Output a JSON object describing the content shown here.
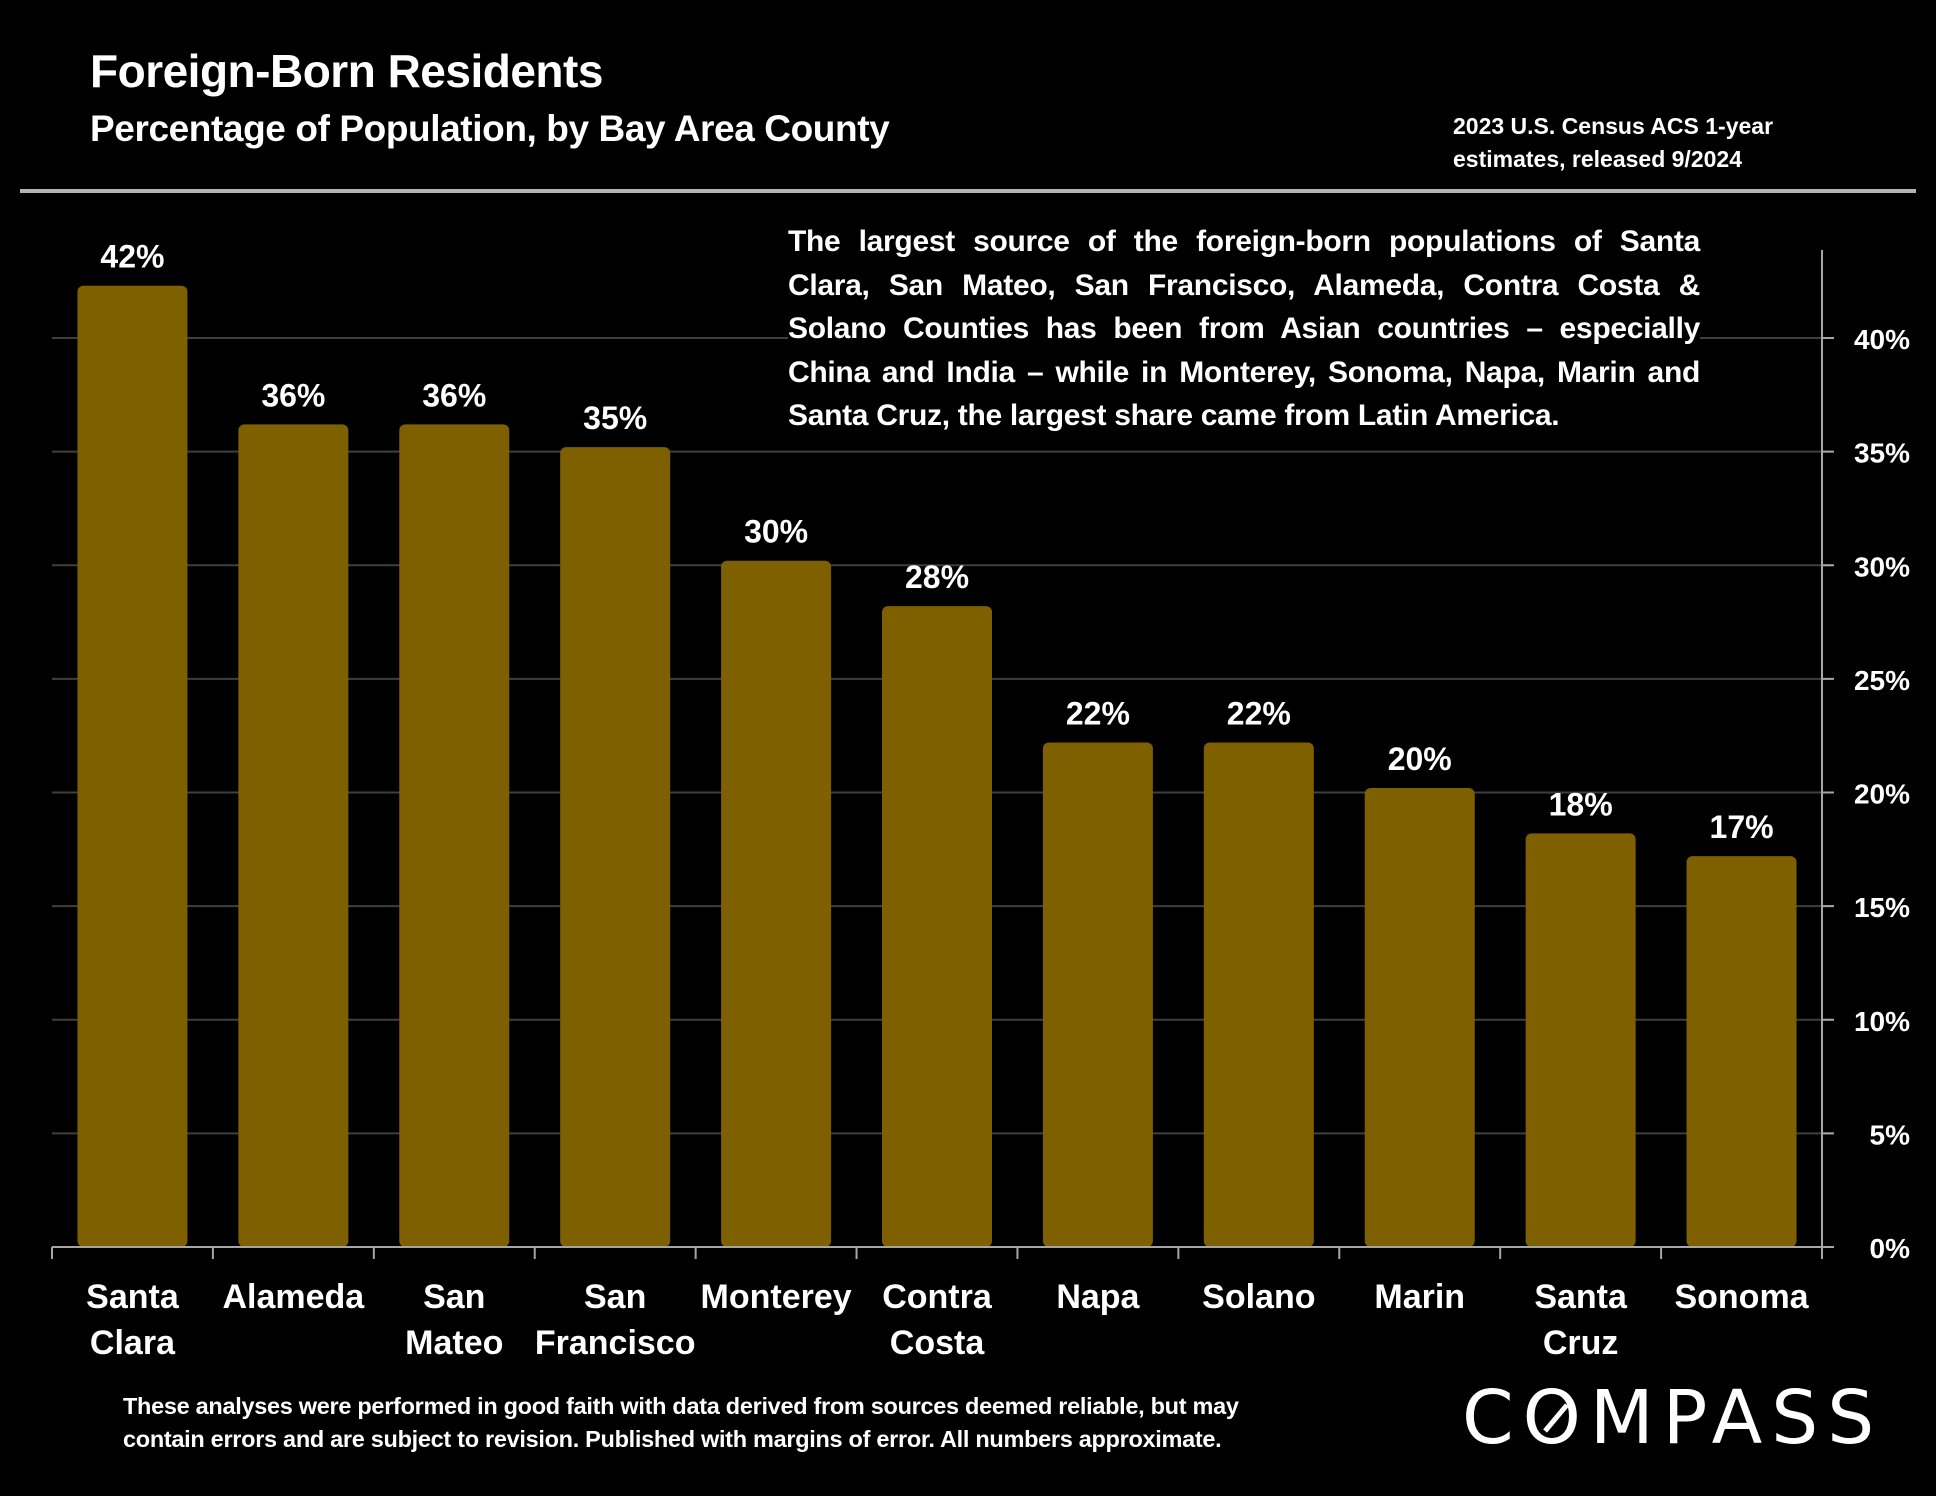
{
  "header": {
    "title": "Foreign-Born Residents",
    "subtitle": "Percentage of Population, by Bay Area County",
    "source_line1": "2023 U.S. Census ACS 1-year",
    "source_line2": "estimates, released 9/2024"
  },
  "annotation": "The largest source of the foreign-born populations of Santa Clara, San Mateo, San Francisco, Alameda, Contra Costa & Solano Counties has been from Asian countries – especially China and India – while in Monterey, Sonoma, Napa, Marin and Santa Cruz, the largest share came from Latin America.",
  "footer": {
    "disclaimer_line1": "These analyses were performed in good faith with data derived from sources deemed reliable, but may",
    "disclaimer_line2": "contain errors and are subject to revision.  Published with margins of error. All numbers approximate.",
    "logo_pre": "C",
    "logo_o": "O",
    "logo_post": "MPASS"
  },
  "colors": {
    "bar": "#7f6000",
    "background": "#000000",
    "gridline": "#3f3f3f",
    "axis": "#a6a6a6",
    "text": "#ffffff"
  },
  "chart_data": {
    "type": "bar",
    "title": "Foreign-Born Residents",
    "subtitle": "Percentage of Population, by Bay Area County",
    "xlabel": "",
    "ylabel": "",
    "categories": [
      [
        "Santa",
        "Clara"
      ],
      [
        "Alameda"
      ],
      [
        "San",
        "Mateo"
      ],
      [
        "San",
        "Francisco"
      ],
      [
        "Monterey"
      ],
      [
        "Contra",
        "Costa"
      ],
      [
        "Napa"
      ],
      [
        "Solano"
      ],
      [
        "Marin"
      ],
      [
        "Santa",
        "Cruz"
      ],
      [
        "Sonoma"
      ]
    ],
    "values": [
      42.3,
      36.2,
      36.2,
      35.2,
      30.2,
      28.2,
      22.2,
      22.2,
      20.2,
      18.2,
      17.2
    ],
    "data_labels": [
      "42%",
      "36%",
      "36%",
      "35%",
      "30%",
      "28%",
      "22%",
      "22%",
      "20%",
      "18%",
      "17%"
    ],
    "ylim": [
      0,
      44
    ],
    "yticks": [
      0,
      5,
      10,
      15,
      20,
      25,
      30,
      35,
      40
    ],
    "ytick_labels": [
      "0%",
      "5%",
      "10%",
      "15%",
      "20%",
      "25%",
      "30%",
      "35%",
      "40%"
    ],
    "y_axis_side": "right",
    "grid": true,
    "legend": "none"
  }
}
